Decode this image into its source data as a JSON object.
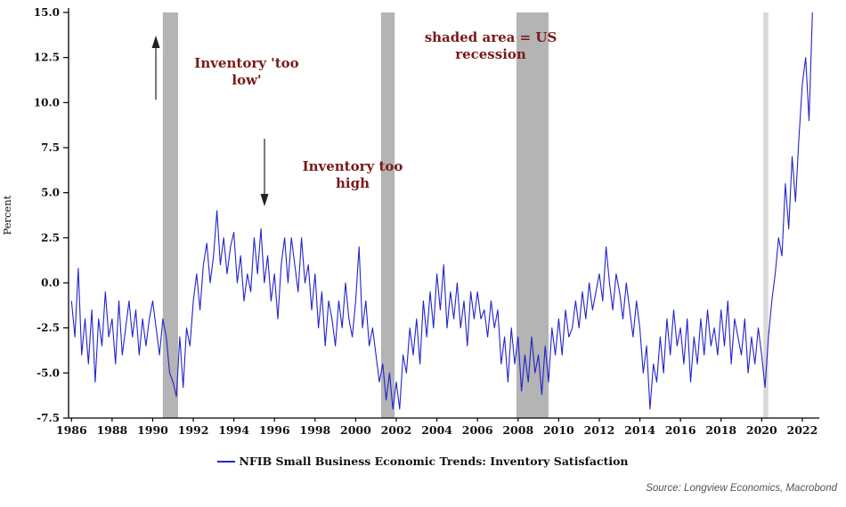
{
  "chart_data": {
    "type": "line",
    "title": "",
    "ylabel": "Percent",
    "ylim": [
      -7.5,
      15.0
    ],
    "yticks": [
      15.0,
      12.5,
      10.0,
      7.5,
      5.0,
      2.5,
      0.0,
      -2.5,
      -5.0,
      -7.5
    ],
    "xticks": [
      1986,
      1988,
      1990,
      1992,
      1994,
      1996,
      1998,
      2000,
      2002,
      2004,
      2006,
      2008,
      2010,
      2012,
      2014,
      2016,
      2018,
      2020,
      2022
    ],
    "x_axis_min": 1985.9,
    "x_axis_max": 2022.75,
    "x_start": 1986.0,
    "x_step_years": 0.1666667,
    "series": [
      {
        "name": "NFIB Small Business Economic Trends: Inventory Satisfaction",
        "color": "#2323cc",
        "values": [
          -1.0,
          -3.0,
          0.8,
          -4.0,
          -2.0,
          -4.5,
          -1.5,
          -5.5,
          -2.0,
          -3.5,
          -0.5,
          -3.0,
          -2.0,
          -4.5,
          -1.0,
          -4.0,
          -2.5,
          -1.0,
          -3.0,
          -1.5,
          -4.0,
          -2.0,
          -3.5,
          -2.0,
          -1.0,
          -2.5,
          -4.0,
          -2.0,
          -3.0,
          -5.0,
          -5.5,
          -6.3,
          -3.0,
          -5.8,
          -2.5,
          -3.5,
          -1.0,
          0.5,
          -1.5,
          1.0,
          2.2,
          0.0,
          1.5,
          4.0,
          1.0,
          2.5,
          0.5,
          2.0,
          2.8,
          0.0,
          1.5,
          -1.0,
          0.5,
          -0.5,
          2.5,
          0.5,
          3.0,
          0.0,
          1.5,
          -1.0,
          0.5,
          -2.0,
          1.0,
          2.5,
          0.0,
          2.5,
          1.0,
          -0.5,
          2.5,
          0.0,
          1.0,
          -1.5,
          0.5,
          -2.5,
          -0.5,
          -3.5,
          -1.0,
          -2.0,
          -3.5,
          -1.0,
          -2.5,
          0.0,
          -2.0,
          -3.0,
          -1.0,
          2.0,
          -2.5,
          -1.0,
          -3.5,
          -2.5,
          -4.0,
          -5.5,
          -4.5,
          -6.5,
          -5.0,
          -7.0,
          -5.5,
          -7.0,
          -4.0,
          -5.0,
          -2.5,
          -4.0,
          -2.0,
          -4.5,
          -1.0,
          -3.0,
          -0.5,
          -2.5,
          0.5,
          -1.5,
          1.0,
          -2.5,
          -0.5,
          -2.0,
          0.0,
          -2.5,
          -1.0,
          -3.5,
          -0.5,
          -2.0,
          -0.5,
          -2.0,
          -1.5,
          -3.0,
          -1.0,
          -2.5,
          -1.5,
          -4.5,
          -3.0,
          -5.5,
          -2.5,
          -4.5,
          -3.0,
          -6.0,
          -4.0,
          -5.5,
          -3.0,
          -5.0,
          -4.0,
          -6.2,
          -3.5,
          -5.5,
          -2.5,
          -4.0,
          -2.0,
          -4.0,
          -1.5,
          -3.0,
          -2.5,
          -1.0,
          -2.5,
          -0.5,
          -2.0,
          0.0,
          -1.5,
          -0.5,
          0.5,
          -1.0,
          2.0,
          0.0,
          -1.5,
          0.5,
          -0.5,
          -2.0,
          0.0,
          -1.5,
          -3.0,
          -1.0,
          -2.5,
          -5.0,
          -3.5,
          -7.0,
          -4.5,
          -5.5,
          -3.0,
          -5.0,
          -2.0,
          -4.0,
          -1.5,
          -3.5,
          -2.5,
          -4.5,
          -2.0,
          -5.5,
          -3.0,
          -4.5,
          -2.0,
          -4.0,
          -1.5,
          -3.5,
          -2.5,
          -4.0,
          -1.5,
          -3.5,
          -1.0,
          -4.5,
          -2.0,
          -3.0,
          -4.0,
          -2.0,
          -5.0,
          -3.0,
          -4.5,
          -2.5,
          -4.0,
          -5.8,
          -3.0,
          -1.0,
          0.5,
          2.5,
          1.5,
          5.5,
          3.0,
          7.0,
          4.5,
          8.0,
          11.0,
          12.5,
          9.0,
          15.0
        ]
      }
    ],
    "recessions": [
      {
        "start": 1990.5,
        "end": 1991.25,
        "color": "#b4b4b4"
      },
      {
        "start": 2001.25,
        "end": 2001.92,
        "color": "#b4b4b4"
      },
      {
        "start": 2007.92,
        "end": 2009.5,
        "color": "#b4b4b4"
      },
      {
        "start": 2020.08,
        "end": 2020.33,
        "color": "#d9d9d9"
      }
    ],
    "annotations": [
      {
        "text": "Inventory 'too low'"
      },
      {
        "text": "Inventory too high"
      },
      {
        "text": "shaded area = US recession"
      }
    ],
    "legend": {
      "label": "NFIB Small Business Economic Trends: Inventory Satisfaction"
    },
    "source": "Source: Longview Economics, Macrobond"
  }
}
